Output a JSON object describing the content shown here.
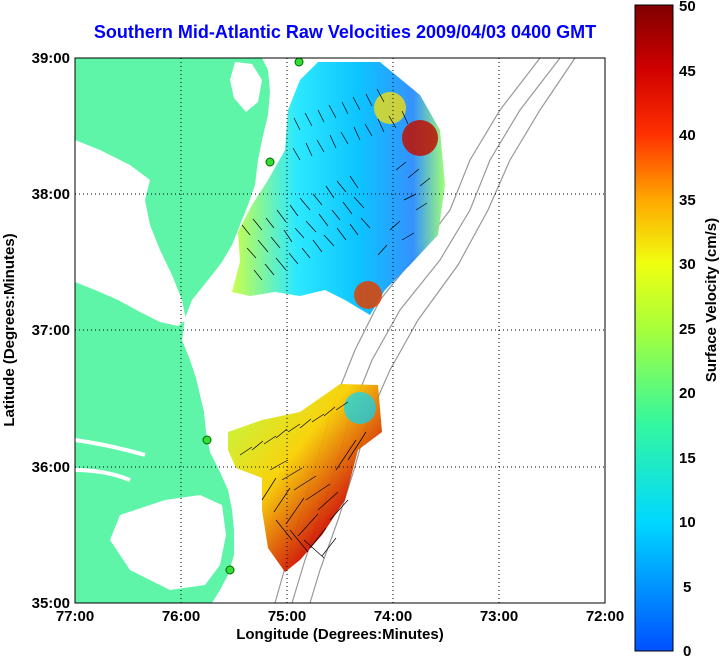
{
  "title": "Southern Mid-Atlantic Raw Velocities 2009/04/03 0400 GMT",
  "x_axis": {
    "label": "Longitude (Degrees:Minutes)",
    "ticks": [
      "77:00",
      "76:00",
      "75:00",
      "74:00",
      "73:00",
      "72:00"
    ]
  },
  "y_axis": {
    "label": "Latitude (Degrees:Minutes)",
    "ticks": [
      "39:00",
      "38:00",
      "37:00",
      "36:00",
      "35:00"
    ]
  },
  "colorbar": {
    "label": "Surface Velocity (cm/s)",
    "ticks": [
      "50",
      "45",
      "40",
      "35",
      "30",
      "25",
      "20",
      "15",
      "10",
      "5",
      "0"
    ],
    "min": 0,
    "max": 50
  },
  "map": {
    "lon_range": [
      -77,
      -72
    ],
    "lat_range": [
      35,
      39
    ],
    "land_color": "#5ff5a8",
    "water_color": "#ffffff",
    "grid": true,
    "velocity_regions": [
      {
        "name": "north",
        "center_lon": -74.9,
        "center_lat": 38.05
      },
      {
        "name": "south",
        "center_lon": -74.8,
        "center_lat": 35.9
      }
    ]
  }
}
